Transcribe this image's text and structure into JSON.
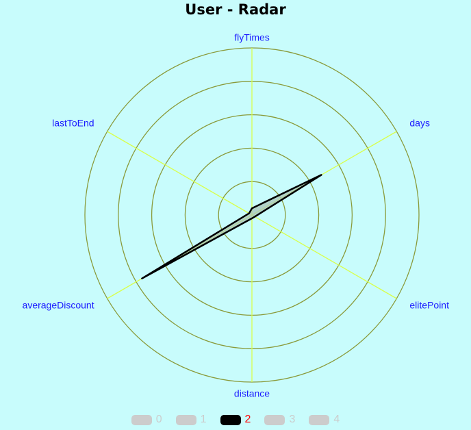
{
  "chart_data": {
    "type": "radar",
    "title": "User - Radar",
    "indicators": [
      "flyTimes",
      "days",
      "elitePoint",
      "distance",
      "averageDiscount",
      "lastToEnd"
    ],
    "rings": 5,
    "max": 5,
    "series": [
      {
        "name": "2",
        "values": [
          0.2,
          2.4,
          0.1,
          0.1,
          3.8,
          0.1
        ]
      }
    ],
    "legend": {
      "position": "bottom-center",
      "items": [
        {
          "label": "0",
          "selected": false
        },
        {
          "label": "1",
          "selected": false
        },
        {
          "label": "2",
          "selected": true
        },
        {
          "label": "3",
          "selected": false
        },
        {
          "label": "4",
          "selected": false
        }
      ]
    },
    "colors": {
      "background": "#c8fcfc",
      "ring": "#8a9a3a",
      "axis": "#d9ff4a",
      "indicator_label": "#1a1aff",
      "series_line": "#000000",
      "series_fill": "#a9c4b8",
      "legend_active_swatch": "#000000",
      "legend_active_text": "#ff0000",
      "legend_inactive": "#cccccc"
    }
  }
}
